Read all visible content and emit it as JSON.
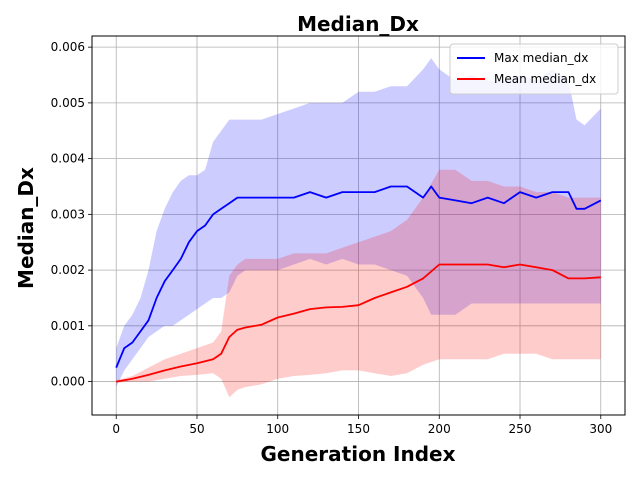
{
  "chart_data": {
    "type": "line",
    "title": "Median_Dx",
    "xlabel": "Generation Index",
    "ylabel": "Median_Dx",
    "xlim": [
      -15,
      315
    ],
    "ylim": [
      -0.0006,
      0.0062
    ],
    "xticks": [
      0,
      50,
      100,
      150,
      200,
      250,
      300
    ],
    "yticks": [
      0.0,
      0.001,
      0.002,
      0.003,
      0.004,
      0.005,
      0.006
    ],
    "ytick_labels": [
      "0.000",
      "0.001",
      "0.002",
      "0.003",
      "0.004",
      "0.005",
      "0.006"
    ],
    "grid": true,
    "legend_position": "top-right",
    "series": [
      {
        "name": "Max median_dx",
        "color": "#0000ff",
        "band_color": "#0000ff",
        "x": [
          0,
          5,
          10,
          15,
          20,
          25,
          30,
          35,
          40,
          45,
          50,
          55,
          60,
          65,
          70,
          75,
          80,
          90,
          100,
          110,
          120,
          130,
          140,
          150,
          160,
          170,
          180,
          190,
          195,
          200,
          210,
          220,
          230,
          240,
          250,
          260,
          270,
          280,
          285,
          290,
          300
        ],
        "values": [
          0.00025,
          0.0006,
          0.0007,
          0.0009,
          0.0011,
          0.0015,
          0.0018,
          0.002,
          0.0022,
          0.0025,
          0.0027,
          0.0028,
          0.003,
          0.0031,
          0.0032,
          0.0033,
          0.0033,
          0.0033,
          0.0033,
          0.0033,
          0.0034,
          0.0033,
          0.0034,
          0.0034,
          0.0034,
          0.0035,
          0.0035,
          0.0033,
          0.0035,
          0.0033,
          0.00325,
          0.0032,
          0.0033,
          0.0032,
          0.0034,
          0.0033,
          0.0034,
          0.0034,
          0.0031,
          0.0031,
          0.00325
        ],
        "upper": [
          0.0006,
          0.001,
          0.0012,
          0.0015,
          0.002,
          0.0027,
          0.0031,
          0.0034,
          0.0036,
          0.0037,
          0.0037,
          0.0038,
          0.0043,
          0.0045,
          0.0047,
          0.0047,
          0.0047,
          0.0047,
          0.0048,
          0.0049,
          0.005,
          0.005,
          0.005,
          0.0052,
          0.0052,
          0.0053,
          0.0053,
          0.0056,
          0.0058,
          0.0056,
          0.0054,
          0.0055,
          0.0054,
          0.0054,
          0.0055,
          0.0054,
          0.0056,
          0.0054,
          0.0047,
          0.0046,
          0.0049
        ],
        "lower": [
          -0.0001,
          0.0002,
          0.0004,
          0.0006,
          0.0008,
          0.0009,
          0.001,
          0.001,
          0.0011,
          0.0012,
          0.0013,
          0.0014,
          0.0015,
          0.0015,
          0.0016,
          0.0019,
          0.002,
          0.002,
          0.002,
          0.0021,
          0.0022,
          0.0021,
          0.0022,
          0.0021,
          0.0021,
          0.002,
          0.0019,
          0.0015,
          0.0012,
          0.0012,
          0.0012,
          0.0014,
          0.0014,
          0.0014,
          0.0014,
          0.0014,
          0.0014,
          0.0014,
          0.0014,
          0.0014,
          0.0014
        ]
      },
      {
        "name": "Mean median_dx",
        "color": "#ff0000",
        "band_color": "#ff0000",
        "x": [
          0,
          10,
          20,
          30,
          40,
          50,
          60,
          65,
          70,
          75,
          80,
          90,
          100,
          110,
          120,
          130,
          140,
          150,
          160,
          170,
          180,
          190,
          200,
          210,
          220,
          230,
          240,
          250,
          260,
          270,
          280,
          290,
          300
        ],
        "values": [
          0.0,
          5e-05,
          0.00012,
          0.0002,
          0.00027,
          0.00033,
          0.0004,
          0.0005,
          0.0008,
          0.00093,
          0.00097,
          0.00102,
          0.00115,
          0.00122,
          0.0013,
          0.00133,
          0.00134,
          0.00137,
          0.0015,
          0.0016,
          0.0017,
          0.00185,
          0.0021,
          0.0021,
          0.0021,
          0.0021,
          0.00205,
          0.0021,
          0.00205,
          0.002,
          0.00185,
          0.00185,
          0.00187
        ],
        "upper": [
          2e-05,
          0.0001,
          0.00025,
          0.0004,
          0.0005,
          0.0006,
          0.0007,
          0.0009,
          0.0019,
          0.0021,
          0.0022,
          0.0022,
          0.0022,
          0.0023,
          0.0023,
          0.0023,
          0.0024,
          0.0025,
          0.0026,
          0.0027,
          0.0029,
          0.0033,
          0.0038,
          0.0038,
          0.0036,
          0.0036,
          0.0035,
          0.0035,
          0.0034,
          0.0034,
          0.0033,
          0.0033,
          0.0033
        ],
        "lower": [
          -2e-05,
          0.0,
          0.0,
          5e-05,
          0.0001,
          0.00012,
          0.00015,
          5e-05,
          -0.00028,
          -0.00015,
          -0.0001,
          -5e-05,
          5e-05,
          0.0001,
          0.00012,
          0.00015,
          0.0002,
          0.0002,
          0.00015,
          0.0001,
          0.00015,
          0.0003,
          0.0004,
          0.0004,
          0.0004,
          0.0004,
          0.0005,
          0.0005,
          0.0005,
          0.0004,
          0.0004,
          0.0004,
          0.0004
        ]
      }
    ]
  }
}
